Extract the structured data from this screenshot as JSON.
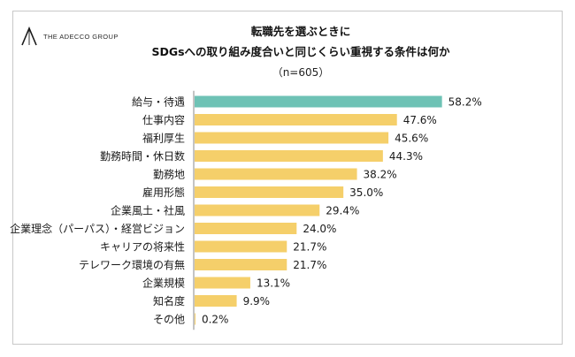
{
  "brand": {
    "name": "THE ADECCO GROUP"
  },
  "header": {
    "title_line1": "転職先を選ぶときに",
    "title_line2": "SDGsへの取り組み度合いと同じくらい重視する条件は何か",
    "sample": "（n=605）"
  },
  "colors": {
    "highlight": "#6ec2b5",
    "bar": "#f5cf6a",
    "axis": "#8a8a8a"
  },
  "chart_data": {
    "type": "bar",
    "orientation": "horizontal",
    "value_suffix": "%",
    "categories": [
      "給与・待遇",
      "仕事内容",
      "福利厚生",
      "勤務時間・休日数",
      "勤務地",
      "雇用形態",
      "企業風土・社風",
      "企業理念（パーパス）・経営ビジョン",
      "キャリアの将来性",
      "テレワーク環境の有無",
      "企業規模",
      "知名度",
      "その他"
    ],
    "values": [
      58.2,
      47.6,
      45.6,
      44.3,
      38.2,
      35.0,
      29.4,
      24.0,
      21.7,
      21.7,
      13.1,
      9.9,
      0.2
    ],
    "value_labels": [
      "58.2%",
      "47.6%",
      "45.6%",
      "44.3%",
      "38.2%",
      "35.0%",
      "29.4%",
      "24.0%",
      "21.7%",
      "21.7%",
      "13.1%",
      "9.9%",
      "0.2%"
    ],
    "highlight_index": 0,
    "xlim": [
      0,
      60
    ],
    "grid": false
  }
}
